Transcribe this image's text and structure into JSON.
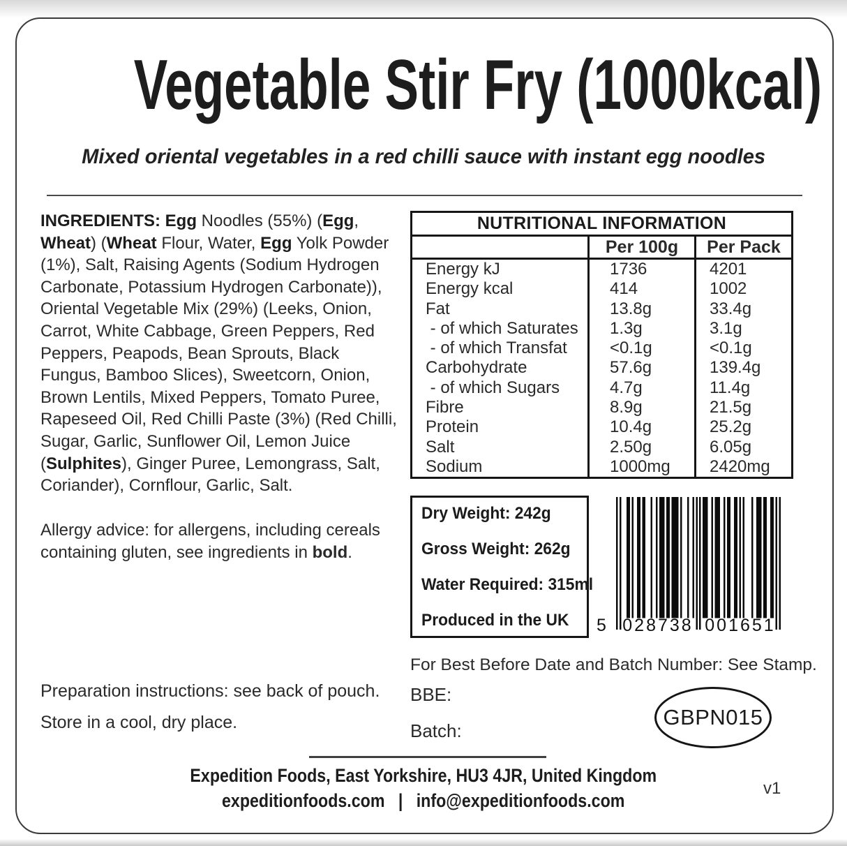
{
  "page": {
    "title": "Vegetable Stir Fry (1000kcal)",
    "subtitle": "Mixed oriental vegetables in a red chilli sauce with instant egg noodles",
    "version": "v1",
    "text_color": "#2a2a2a",
    "border_color": "#3b3b3b"
  },
  "ingredients": {
    "lines": [
      [
        {
          "t": "INGREDIENTS: Egg",
          "b": true
        },
        " Noodles (55%) (",
        {
          "t": "Egg",
          "b": true
        },
        ","
      ],
      [
        {
          "t": "Wheat",
          "b": true
        },
        ") (",
        {
          "t": "Wheat",
          "b": true
        },
        " Flour, Water, ",
        {
          "t": "Egg",
          "b": true
        },
        " Yolk Powder"
      ],
      [
        "(1%), Salt, Raising Agents (Sodium Hydrogen"
      ],
      [
        "Carbonate, Potassium Hydrogen Carbonate)),"
      ],
      [
        "Oriental Vegetable Mix (29%) (Leeks, Onion,"
      ],
      [
        "Carrot, White Cabbage, Green Peppers, Red"
      ],
      [
        "Peppers, Peapods, Bean Sprouts, Black"
      ],
      [
        "Fungus, Bamboo Slices), Sweetcorn, Onion,"
      ],
      [
        "Brown Lentils, Mixed Peppers, Tomato Puree,"
      ],
      [
        "Rapeseed Oil, Red Chilli Paste (3%) (Red Chilli,"
      ],
      [
        "Sugar, Garlic, Sunflower Oil, Lemon Juice"
      ],
      [
        "(",
        {
          "t": "Sulphites",
          "b": true
        },
        "), Ginger Puree, Lemongrass, Salt,"
      ],
      [
        "Coriander), Cornflour, Garlic, Salt."
      ]
    ]
  },
  "allergy": {
    "lines": [
      [
        "Allergy advice: for allergens, including cereals"
      ],
      [
        "containing gluten, see ingredients in ",
        {
          "t": "bold",
          "b": true
        },
        "."
      ]
    ]
  },
  "storage": {
    "preparation": "Preparation instructions: see back of pouch.",
    "store": "Store in a cool, dry place."
  },
  "nutrition": {
    "title": "NUTRITIONAL INFORMATION",
    "col_per100g": "Per 100g",
    "col_perpack": "Per Pack",
    "rows": [
      {
        "label": "Energy kJ",
        "per100g": "1736",
        "perpack": "4201"
      },
      {
        "label": "Energy kcal",
        "per100g": "414",
        "perpack": "1002"
      },
      {
        "label": "Fat",
        "per100g": "13.8g",
        "perpack": "33.4g"
      },
      {
        "label": " - of which Saturates",
        "per100g": "1.3g",
        "perpack": "3.1g"
      },
      {
        "label": " - of which Transfat",
        "per100g": "<0.1g",
        "perpack": "<0.1g"
      },
      {
        "label": "Carbohydrate",
        "per100g": "57.6g",
        "perpack": "139.4g"
      },
      {
        "label": " - of which Sugars",
        "per100g": "4.7g",
        "perpack": "11.4g"
      },
      {
        "label": "Fibre",
        "per100g": "8.9g",
        "perpack": "21.5g"
      },
      {
        "label": "Protein",
        "per100g": "10.4g",
        "perpack": "25.2g"
      },
      {
        "label": "Salt",
        "per100g": "2.50g",
        "perpack": "6.05g"
      },
      {
        "label": "Sodium",
        "per100g": "1000mg",
        "perpack": "2420mg"
      }
    ]
  },
  "weights": {
    "dry": "Dry Weight: 242g",
    "gross": "Gross Weight: 262g",
    "water": "Water Required: 315ml",
    "produced": "Produced in the UK"
  },
  "barcode": {
    "leading_digit": "5",
    "group1": "028738",
    "group2": "001651",
    "modules": "10100011010011011000100101110110111101000100101010111001011100101100110101000010011101100110101"
  },
  "batch_info": {
    "stamp_note": "For Best Before Date and Batch Number: See Stamp.",
    "bbe_label": "BBE:",
    "batch_label": "Batch:",
    "stamp_code": "GBPN015"
  },
  "footer": {
    "address": "Expedition Foods, East Yorkshire, HU3 4JR, United Kingdom",
    "contact": "expeditionfoods.com   |   info@expeditionfoods.com"
  }
}
